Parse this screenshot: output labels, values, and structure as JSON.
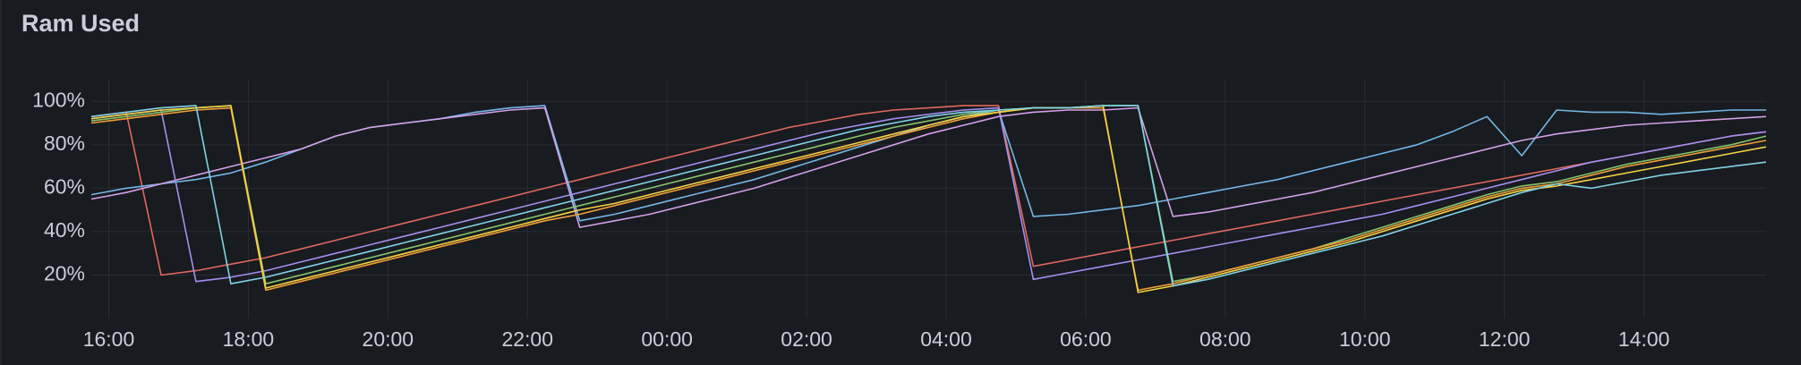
{
  "chart_data": {
    "type": "line",
    "title": "Ram Used",
    "x": [
      "15:45",
      "16:15",
      "16:45",
      "17:15",
      "17:45",
      "18:15",
      "18:45",
      "19:15",
      "19:45",
      "20:15",
      "20:45",
      "21:15",
      "21:45",
      "22:15",
      "22:45",
      "23:15",
      "23:45",
      "00:15",
      "00:45",
      "01:15",
      "01:45",
      "02:15",
      "02:45",
      "03:15",
      "03:45",
      "04:15",
      "04:45",
      "05:15",
      "05:45",
      "06:15",
      "06:45",
      "07:15",
      "07:45",
      "08:15",
      "08:45",
      "09:15",
      "09:45",
      "10:15",
      "10:45",
      "11:15",
      "11:45",
      "12:15",
      "12:45",
      "13:15",
      "13:45",
      "14:15",
      "14:45",
      "15:15",
      "15:45"
    ],
    "xticks": [
      "16:00",
      "18:00",
      "20:00",
      "22:00",
      "00:00",
      "02:00",
      "04:00",
      "06:00",
      "08:00",
      "10:00",
      "12:00",
      "14:00"
    ],
    "ylim": [
      0,
      110
    ],
    "yticks": [
      {
        "value": 20,
        "label": "20%"
      },
      {
        "value": 40,
        "label": "40%"
      },
      {
        "value": 60,
        "label": "60%"
      },
      {
        "value": 80,
        "label": "80%"
      },
      {
        "value": 100,
        "label": "100%"
      }
    ],
    "grid": true,
    "series": [
      {
        "color": "#e0685f",
        "values": [
          93,
          95,
          20,
          22,
          25,
          28,
          32,
          36,
          40,
          44,
          48,
          52,
          56,
          60,
          64,
          68,
          72,
          76,
          80,
          84,
          88,
          91,
          94,
          96,
          97,
          98,
          98,
          24,
          27,
          30,
          33,
          36,
          39,
          42,
          45,
          48,
          51,
          54,
          57,
          60,
          63,
          66,
          69,
          72,
          75,
          78,
          81,
          84,
          86
        ]
      },
      {
        "color": "#73b7e6",
        "values": [
          57,
          60,
          62,
          64,
          67,
          72,
          78,
          84,
          88,
          90,
          92,
          95,
          97,
          98,
          45,
          48,
          52,
          56,
          60,
          64,
          69,
          74,
          79,
          84,
          89,
          93,
          96,
          47,
          48,
          50,
          52,
          55,
          58,
          61,
          64,
          68,
          72,
          76,
          80,
          86,
          93,
          75,
          96,
          95,
          95,
          94,
          95,
          96,
          96
        ]
      },
      {
        "color": "#d39fe8",
        "values": [
          55,
          58,
          62,
          66,
          70,
          74,
          78,
          84,
          88,
          90,
          92,
          94,
          96,
          97,
          42,
          45,
          48,
          52,
          56,
          60,
          65,
          70,
          75,
          80,
          85,
          89,
          93,
          95,
          96,
          96,
          97,
          47,
          49,
          52,
          55,
          58,
          62,
          66,
          70,
          74,
          78,
          82,
          85,
          87,
          89,
          90,
          91,
          92,
          93
        ]
      },
      {
        "color": "#a48ff0",
        "values": [
          92,
          94,
          96,
          17,
          19,
          22,
          26,
          30,
          34,
          38,
          42,
          46,
          50,
          54,
          58,
          62,
          66,
          70,
          74,
          78,
          82,
          86,
          89,
          92,
          94,
          96,
          97,
          18,
          21,
          24,
          27,
          30,
          33,
          36,
          39,
          42,
          45,
          48,
          52,
          56,
          60,
          64,
          68,
          72,
          75,
          78,
          81,
          84,
          86
        ]
      },
      {
        "color": "#86c46b",
        "values": [
          91,
          93,
          95,
          97,
          98,
          16,
          20,
          24,
          28,
          32,
          36,
          40,
          44,
          48,
          52,
          56,
          60,
          64,
          68,
          72,
          76,
          80,
          84,
          88,
          91,
          94,
          96,
          97,
          97,
          98,
          98,
          17,
          20,
          24,
          28,
          32,
          37,
          42,
          47,
          52,
          57,
          61,
          63,
          67,
          71,
          74,
          77,
          80,
          84
        ]
      },
      {
        "color": "#f29e38",
        "values": [
          90,
          92,
          94,
          96,
          97,
          13,
          17,
          21,
          25,
          29,
          33,
          37,
          41,
          45,
          48,
          52,
          56,
          60,
          64,
          68,
          72,
          76,
          80,
          84,
          88,
          92,
          95,
          97,
          97,
          97,
          13,
          16,
          20,
          24,
          28,
          32,
          36,
          41,
          46,
          51,
          56,
          60,
          62,
          66,
          70,
          73,
          76,
          79,
          82
        ]
      },
      {
        "color": "#f5d243",
        "values": [
          92,
          94,
          96,
          97,
          98,
          14,
          18,
          22,
          26,
          30,
          34,
          38,
          42,
          46,
          50,
          53,
          57,
          61,
          65,
          69,
          73,
          77,
          81,
          85,
          89,
          93,
          95,
          97,
          97,
          98,
          12,
          15,
          19,
          23,
          27,
          31,
          35,
          40,
          45,
          50,
          55,
          59,
          61,
          64,
          67,
          70,
          73,
          76,
          79
        ]
      },
      {
        "color": "#7fd3e8",
        "values": [
          93,
          95,
          97,
          98,
          16,
          19,
          23,
          27,
          31,
          35,
          39,
          43,
          47,
          51,
          55,
          59,
          63,
          67,
          71,
          75,
          79,
          83,
          87,
          90,
          93,
          95,
          96,
          97,
          97,
          98,
          98,
          15,
          18,
          22,
          26,
          30,
          34,
          38,
          43,
          48,
          53,
          58,
          62,
          60,
          63,
          66,
          68,
          70,
          72
        ]
      }
    ]
  }
}
